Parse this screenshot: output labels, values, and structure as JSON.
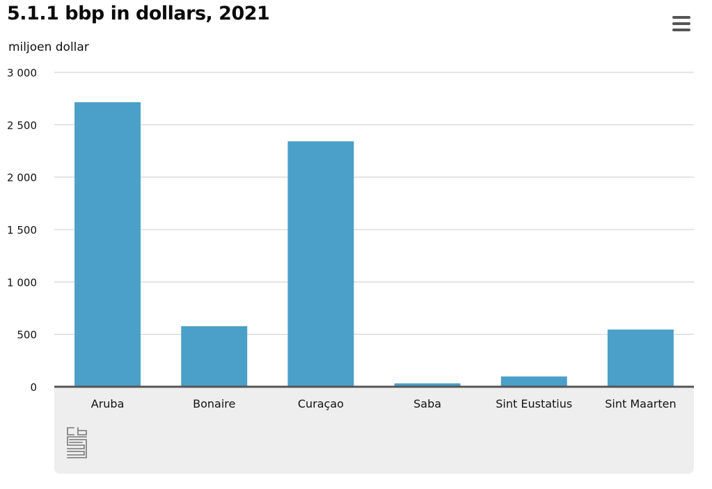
{
  "title": "5.1.1 bbp in dollars, 2021",
  "menu_icon": "hamburger-menu-icon",
  "logo_icon": "cbs-logo-icon",
  "logo_text": "cbs",
  "colors": {
    "bar": "#4aa0c8",
    "grid": "#cccccc",
    "baseline": "#555555",
    "footer_bg": "#eeeeee",
    "menu": "#555555"
  },
  "chart_data": {
    "type": "bar",
    "title": "5.1.1 bbp in dollars, 2021",
    "ylabel": "miljoen dollar",
    "xlabel": "",
    "categories": [
      "Aruba",
      "Bonaire",
      "Curaçao",
      "Saba",
      "Sint Eustatius",
      "Sint Maarten"
    ],
    "values": [
      2715,
      578,
      2342,
      32,
      98,
      546
    ],
    "ylim": [
      0,
      3000
    ],
    "yticks": [
      0,
      500,
      1000,
      1500,
      2000,
      2500,
      3000
    ],
    "ytick_labels": [
      "0",
      "500",
      "1 000",
      "1 500",
      "2 000",
      "2 500",
      "3 000"
    ],
    "grid": true,
    "legend": "none"
  }
}
